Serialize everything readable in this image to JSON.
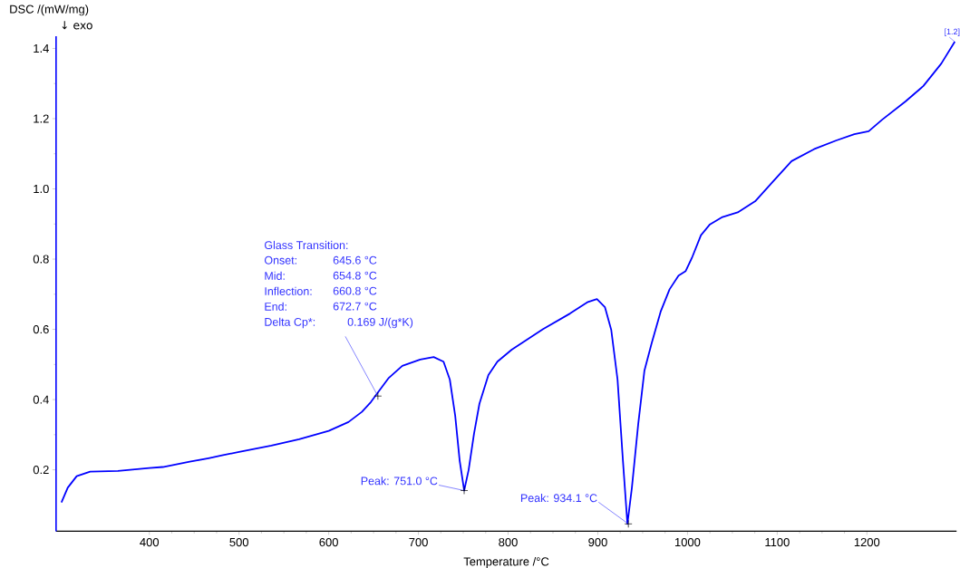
{
  "chart_data": {
    "type": "line",
    "xlabel": "Temperature /°C",
    "ylabel": "DSC /(mW/mg)",
    "xlim": [
      296,
      1300
    ],
    "ylim": [
      0.025,
      1.435
    ],
    "xticks": [
      400,
      500,
      600,
      700,
      800,
      900,
      1000,
      1100,
      1200
    ],
    "yticks": [
      {
        "value": 0.2,
        "label": "0.2"
      },
      {
        "value": 0.4,
        "label": "0.4"
      },
      {
        "value": 0.6,
        "label": "0.6"
      },
      {
        "value": 0.8,
        "label": "0.8"
      },
      {
        "value": 1.0,
        "label": "1.0"
      },
      {
        "value": 1.2,
        "label": "1.2"
      },
      {
        "value": 1.4,
        "label": "1.4"
      }
    ],
    "grid": false,
    "marker": "none",
    "line_style": "solid",
    "series": [
      {
        "color": "#0000ff",
        "x": [
          302,
          309,
          319,
          334,
          365,
          400,
          415,
          445,
          466,
          481,
          500,
          536,
          567,
          600,
          622,
          637,
          647,
          655,
          667,
          682,
          702,
          717,
          728,
          735,
          741,
          746,
          751,
          756,
          762,
          768,
          778,
          788,
          804,
          839,
          869,
          889,
          899,
          908,
          915,
          922,
          928,
          933,
          938,
          945,
          952,
          960,
          970,
          980,
          990,
          998,
          1005,
          1015,
          1025,
          1039,
          1056,
          1076,
          1096,
          1116,
          1141,
          1166,
          1186,
          1202,
          1217,
          1243,
          1263,
          1283,
          1298
        ],
        "values": [
          0.107,
          0.149,
          0.182,
          0.195,
          0.197,
          0.205,
          0.208,
          0.223,
          0.233,
          0.241,
          0.251,
          0.269,
          0.287,
          0.311,
          0.336,
          0.365,
          0.393,
          0.421,
          0.462,
          0.496,
          0.514,
          0.521,
          0.508,
          0.457,
          0.354,
          0.226,
          0.141,
          0.2,
          0.303,
          0.388,
          0.47,
          0.508,
          0.542,
          0.601,
          0.645,
          0.678,
          0.686,
          0.663,
          0.598,
          0.457,
          0.226,
          0.046,
          0.149,
          0.329,
          0.483,
          0.56,
          0.65,
          0.714,
          0.753,
          0.766,
          0.804,
          0.868,
          0.899,
          0.92,
          0.933,
          0.966,
          1.023,
          1.079,
          1.113,
          1.138,
          1.156,
          1.164,
          1.197,
          1.249,
          1.293,
          1.357,
          1.419
        ]
      }
    ],
    "annotations": [
      "Glass Transition:",
      "Onset:",
      "645.6 °C",
      "Mid:",
      "654.8 °C",
      "Inflection:",
      "660.8 °C",
      "End:",
      "672.7 °C",
      "Delta Cp*:",
      {
        "text": "0.169 J/(g*K)",
        "x": 654.8,
        "y": 0.41
      },
      {
        "text": "Peak: 751.0 °C",
        "x": 751.0,
        "y": 0.141
      },
      {
        "text": "Peak: 934.1 °C",
        "x": 934.1,
        "y": 0.046
      },
      {
        "text": "[1.2]",
        "x": 1298,
        "y": 1.419
      },
      "↓ exo"
    ]
  }
}
